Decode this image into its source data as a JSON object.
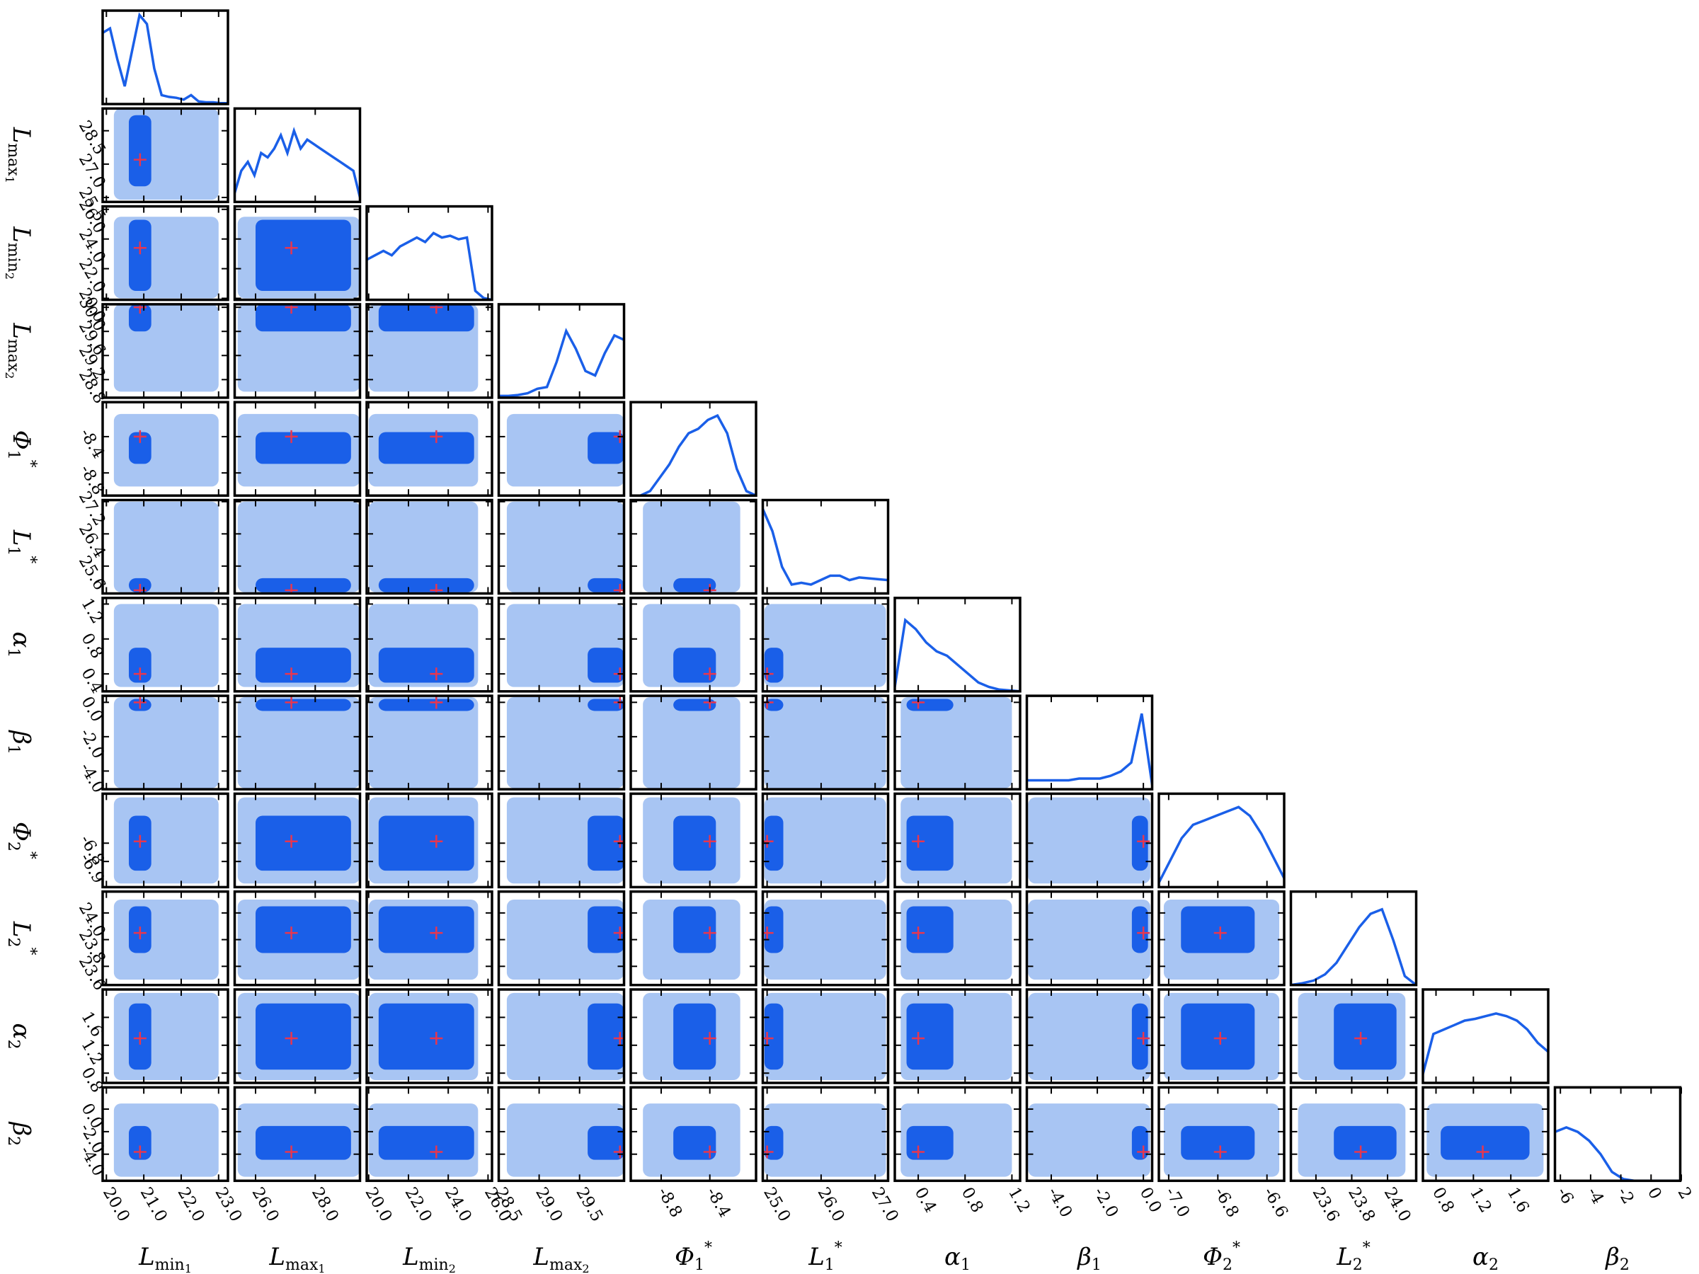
{
  "chart_data": {
    "type": "corner",
    "color_light": "#a8c5f3",
    "color_dark": "#1a5fe8",
    "line_color": "#1a5fe8",
    "truth_color": "#e8364e",
    "density_ylim": [
      0,
      1.05
    ],
    "parameters": [
      {
        "symbol": "L",
        "sub": "min",
        "subsub": "1",
        "lim": [
          19.9,
          23.25
        ],
        "xticks": [
          {
            "value": 20,
            "label": "20.0"
          },
          {
            "value": 21,
            "label": "21.0"
          },
          {
            "value": 22,
            "label": "22.0"
          },
          {
            "value": 23,
            "label": "23.0"
          }
        ],
        "yticks": [],
        "truth": 20.9,
        "core": [
          20.6,
          21.2
        ],
        "spread": [
          20.2,
          23.0
        ],
        "density": [
          0.8,
          0.85,
          0.5,
          0.2,
          0.6,
          1.0,
          0.9,
          0.4,
          0.1,
          0.08,
          0.07,
          0.05,
          0.1,
          0.03,
          0.02,
          0.02,
          0.01,
          0.01
        ]
      },
      {
        "symbol": "L",
        "sub": "max",
        "subsub": "1",
        "lim": [
          25.3,
          29.5
        ],
        "xticks": [
          {
            "value": 26,
            "label": "26.0"
          },
          {
            "value": 28,
            "label": "28.0"
          }
        ],
        "yticks": [
          {
            "value": 25.5,
            "label": "25.5"
          },
          {
            "value": 27,
            "label": "27.0"
          },
          28.5
        ],
        "truth": 27.2,
        "core": [
          26.0,
          29.2
        ],
        "spread": [
          25.4,
          29.5
        ],
        "density": [
          0.1,
          0.35,
          0.45,
          0.3,
          0.55,
          0.5,
          0.6,
          0.75,
          0.55,
          0.8,
          0.6,
          0.7,
          0.65,
          0.6,
          0.55,
          0.5,
          0.45,
          0.4,
          0.35,
          0.05
        ]
      },
      {
        "symbol": "L",
        "sub": "min",
        "subsub": "2",
        "lim": [
          19.9,
          26.2
        ],
        "xticks": [
          {
            "value": 20,
            "label": "20.0"
          },
          {
            "value": 22,
            "label": "22.0"
          },
          {
            "value": 24,
            "label": "24.0"
          },
          {
            "value": 26,
            "label": "26.0"
          }
        ],
        "yticks": [
          {
            "value": 20,
            "label": "20.0"
          },
          {
            "value": 22,
            "label": "22.0"
          },
          {
            "value": 24,
            "label": "24.0"
          },
          {
            "value": 26,
            "label": "26.0"
          }
        ],
        "truth": 23.4,
        "core": [
          20.5,
          25.3
        ],
        "spread": [
          20.0,
          25.5
        ],
        "density": [
          0.45,
          0.5,
          0.55,
          0.5,
          0.6,
          0.65,
          0.7,
          0.65,
          0.75,
          0.7,
          0.72,
          0.68,
          0.7,
          0.1,
          0.02,
          0
        ]
      },
      {
        "symbol": "L",
        "sub": "max",
        "subsub": "2",
        "lim": [
          28.5,
          30.05
        ],
        "xticks": [
          28.5,
          {
            "value": 29,
            "label": "29.0"
          },
          29.5
        ],
        "yticks": [
          28.8,
          29.2,
          29.6,
          {
            "value": 30,
            "label": "30.0"
          }
        ],
        "truth": 30.0,
        "core": [
          29.6,
          30.05
        ],
        "spread": [
          28.6,
          30.05
        ],
        "density": [
          0.02,
          0.02,
          0.03,
          0.05,
          0.1,
          0.12,
          0.4,
          0.75,
          0.55,
          0.3,
          0.25,
          0.5,
          0.7,
          0.65
        ]
      },
      {
        "symbol": "Φ",
        "sub": "1",
        "sup": "*",
        "lim": [
          -9.05,
          -8.02
        ],
        "xticks": [
          -8.8,
          -8.4
        ],
        "yticks": [
          -8.8,
          -8.4
        ],
        "truth": -8.4,
        "core": [
          -8.7,
          -8.35
        ],
        "spread": [
          -8.95,
          -8.15
        ],
        "density": [
          0,
          0,
          0.05,
          0.2,
          0.35,
          0.55,
          0.7,
          0.75,
          0.85,
          0.9,
          0.7,
          0.3,
          0.05,
          0
        ]
      },
      {
        "symbol": "L",
        "sub": "1",
        "sup": "*",
        "lim": [
          24.92,
          27.24
        ],
        "xticks": [
          {
            "value": 25,
            "label": "25.0"
          },
          {
            "value": 26,
            "label": "26.0"
          },
          {
            "value": 27,
            "label": "27.0"
          }
        ],
        "yticks": [
          25.6,
          26.4,
          27.2
        ],
        "truth": 25.0,
        "core": [
          24.95,
          25.3
        ],
        "spread": [
          24.95,
          27.2
        ],
        "density": [
          0.95,
          0.7,
          0.3,
          0.1,
          0.12,
          0.1,
          0.15,
          0.2,
          0.2,
          0.15,
          0.18,
          0.17,
          0.16,
          0.15
        ]
      },
      {
        "symbol": "α",
        "sub": "1",
        "lim": [
          0.2,
          1.27
        ],
        "xticks": [
          0.4,
          0.8,
          1.2
        ],
        "yticks": [
          0.4,
          0.8,
          1.2
        ],
        "truth": 0.4,
        "core": [
          0.3,
          0.7
        ],
        "spread": [
          0.25,
          1.2
        ],
        "density": [
          0.05,
          0.8,
          0.7,
          0.55,
          0.45,
          0.4,
          0.3,
          0.2,
          0.1,
          0.05,
          0.02,
          0.01,
          0
        ]
      },
      {
        "symbol": "β",
        "sub": "1",
        "lim": [
          -5.06,
          0.38
        ],
        "xticks": [
          {
            "value": -4,
            "label": "-4.0"
          },
          {
            "value": -2,
            "label": "-2.0"
          },
          {
            "value": 0,
            "label": "0.0"
          }
        ],
        "yticks": [
          {
            "value": -4,
            "label": "-4.0"
          },
          {
            "value": -2,
            "label": "-2.0"
          },
          {
            "value": 0,
            "label": "0.0"
          }
        ],
        "truth": 0.0,
        "core": [
          -0.5,
          0.2
        ],
        "spread": [
          -5.0,
          0.3
        ],
        "density": [
          0.1,
          0.1,
          0.1,
          0.1,
          0.1,
          0.12,
          0.12,
          0.12,
          0.15,
          0.2,
          0.3,
          0.85,
          0.05
        ]
      },
      {
        "symbol": "Φ",
        "sub": "2",
        "sup": "*",
        "lim": [
          -7.04,
          -6.53
        ],
        "xticks": [
          {
            "value": -7,
            "label": "-7.0"
          },
          -6.8,
          -6.6
        ],
        "yticks": [
          -6.9,
          -6.8
        ],
        "truth": -6.79,
        "core": [
          -6.95,
          -6.65
        ],
        "spread": [
          -7.02,
          -6.55
        ],
        "density": [
          0.05,
          0.3,
          0.55,
          0.7,
          0.75,
          0.8,
          0.85,
          0.9,
          0.8,
          0.6,
          0.35,
          0.1
        ]
      },
      {
        "symbol": "L",
        "sub": "2",
        "sup": "*",
        "lim": [
          23.46,
          24.16
        ],
        "xticks": [
          23.6,
          23.8,
          {
            "value": 24,
            "label": "24.0"
          }
        ],
        "yticks": [
          23.6,
          23.8,
          {
            "value": 24,
            "label": "24.0"
          }
        ],
        "truth": 23.85,
        "core": [
          23.7,
          24.05
        ],
        "spread": [
          23.5,
          24.1
        ],
        "density": [
          0,
          0.02,
          0.05,
          0.12,
          0.25,
          0.45,
          0.65,
          0.8,
          0.85,
          0.5,
          0.1,
          0
        ]
      },
      {
        "symbol": "α",
        "sub": "2",
        "lim": [
          0.66,
          2.0
        ],
        "xticks": [
          0.8,
          1.2,
          1.6
        ],
        "yticks": [
          0.8,
          1.2,
          1.6
        ],
        "truth": 1.3,
        "core": [
          0.85,
          1.8
        ],
        "spread": [
          0.7,
          1.95
        ],
        "density": [
          0.1,
          0.55,
          0.6,
          0.65,
          0.7,
          0.72,
          0.75,
          0.78,
          0.75,
          0.7,
          0.6,
          0.45,
          0.35
        ]
      },
      {
        "symbol": "β",
        "sub": "2",
        "lim": [
          -6.36,
          1.93
        ],
        "xticks": [
          -6,
          -4,
          -2,
          0,
          2
        ],
        "yticks": [
          {
            "value": -4,
            "label": "-4.0"
          },
          {
            "value": -2,
            "label": "-2.0"
          },
          {
            "value": 0,
            "label": "0.0"
          }
        ],
        "truth": -3.8,
        "core": [
          -4.5,
          -1.5
        ],
        "spread": [
          -6.0,
          0.5
        ],
        "density": [
          0.55,
          0.6,
          0.55,
          0.45,
          0.3,
          0.1,
          0.02,
          0,
          0,
          0,
          0,
          0
        ]
      }
    ]
  }
}
